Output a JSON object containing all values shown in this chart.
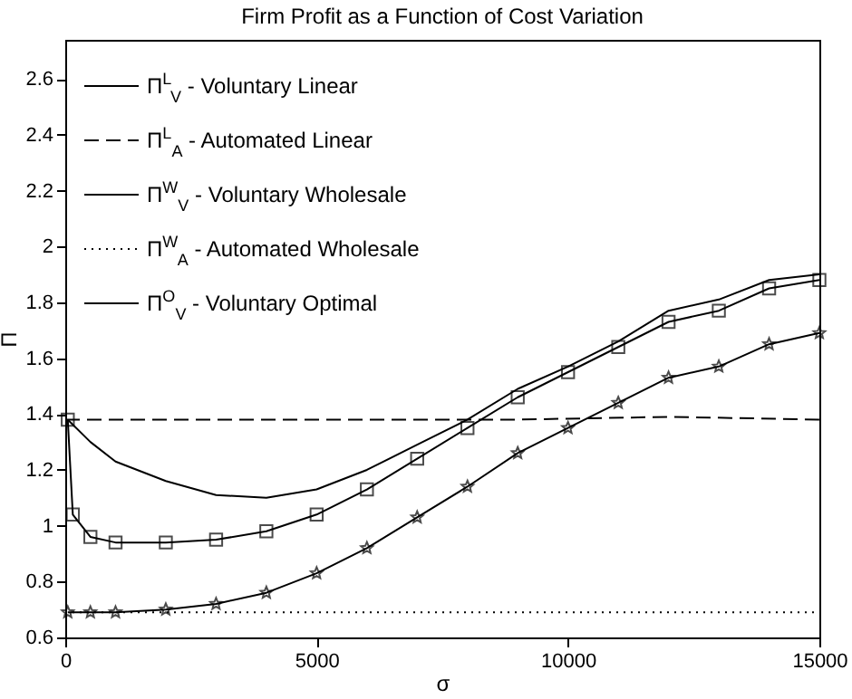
{
  "chart_data": {
    "type": "line",
    "title": "Firm Profit as a Function of Cost Variation",
    "xlabel": "σ",
    "ylabel": "Π",
    "xlim": [
      0,
      15000
    ],
    "xticks": [
      0,
      5000,
      10000,
      15000
    ],
    "ylim": [
      0.6,
      2.74
    ],
    "yticks": [
      0.6,
      0.8,
      1,
      1.2,
      1.4,
      1.6,
      1.8,
      2,
      2.2,
      2.4,
      2.6
    ],
    "grid": false,
    "legend": "top left",
    "series": [
      {
        "name": "Π$^{L}$$_{V}$ - Voluntary Linear",
        "color": "#000000",
        "marker": "square",
        "line_style": "solid",
        "x": [
          50,
          150,
          500,
          1000,
          2000,
          3000,
          4000,
          5000,
          6000,
          7000,
          8000,
          9000,
          10000,
          11000,
          12000,
          13000,
          14000,
          15000
        ],
        "values": [
          1.38,
          1.04,
          0.96,
          0.94,
          0.94,
          0.95,
          0.98,
          1.04,
          1.13,
          1.24,
          1.35,
          1.46,
          1.55,
          1.64,
          1.73,
          1.77,
          1.85,
          1.88
        ]
      },
      {
        "name": "Π$^{L}$$_{A}$ - Automated Linear",
        "color": "#000000",
        "marker": "none",
        "line_style": "dashed",
        "x": [
          0,
          3000,
          6000,
          9000,
          12000,
          15000
        ],
        "values": [
          1.38,
          1.38,
          1.38,
          1.38,
          1.39,
          1.38
        ]
      },
      {
        "name": "Π$^{W}$$_{V}$ - Voluntary Wholesale",
        "color": "#000000",
        "marker": "star",
        "line_style": "solid",
        "x": [
          50,
          500,
          1000,
          2000,
          3000,
          4000,
          5000,
          6000,
          7000,
          8000,
          9000,
          10000,
          11000,
          12000,
          13000,
          14000,
          15000
        ],
        "values": [
          0.69,
          0.69,
          0.69,
          0.7,
          0.72,
          0.76,
          0.83,
          0.92,
          1.03,
          1.14,
          1.26,
          1.35,
          1.44,
          1.53,
          1.57,
          1.65,
          1.69
        ]
      },
      {
        "name": "Π$^{W}$$_{A}$ - Automated Wholesale",
        "color": "#000000",
        "marker": "none",
        "line_style": "dotted",
        "x": [
          0,
          15000
        ],
        "values": [
          0.69,
          0.69
        ]
      },
      {
        "name": "Π$^{O}$$_{V}$ - Voluntary Optimal",
        "color": "#000000",
        "marker": "none",
        "line_style": "solid",
        "x": [
          50,
          500,
          1000,
          2000,
          3000,
          4000,
          5000,
          6000,
          7000,
          8000,
          9000,
          10000,
          11000,
          12000,
          13000,
          14000,
          15000
        ],
        "values": [
          1.38,
          1.3,
          1.23,
          1.16,
          1.11,
          1.1,
          1.13,
          1.2,
          1.29,
          1.38,
          1.49,
          1.57,
          1.66,
          1.77,
          1.81,
          1.88,
          1.9
        ]
      }
    ]
  }
}
